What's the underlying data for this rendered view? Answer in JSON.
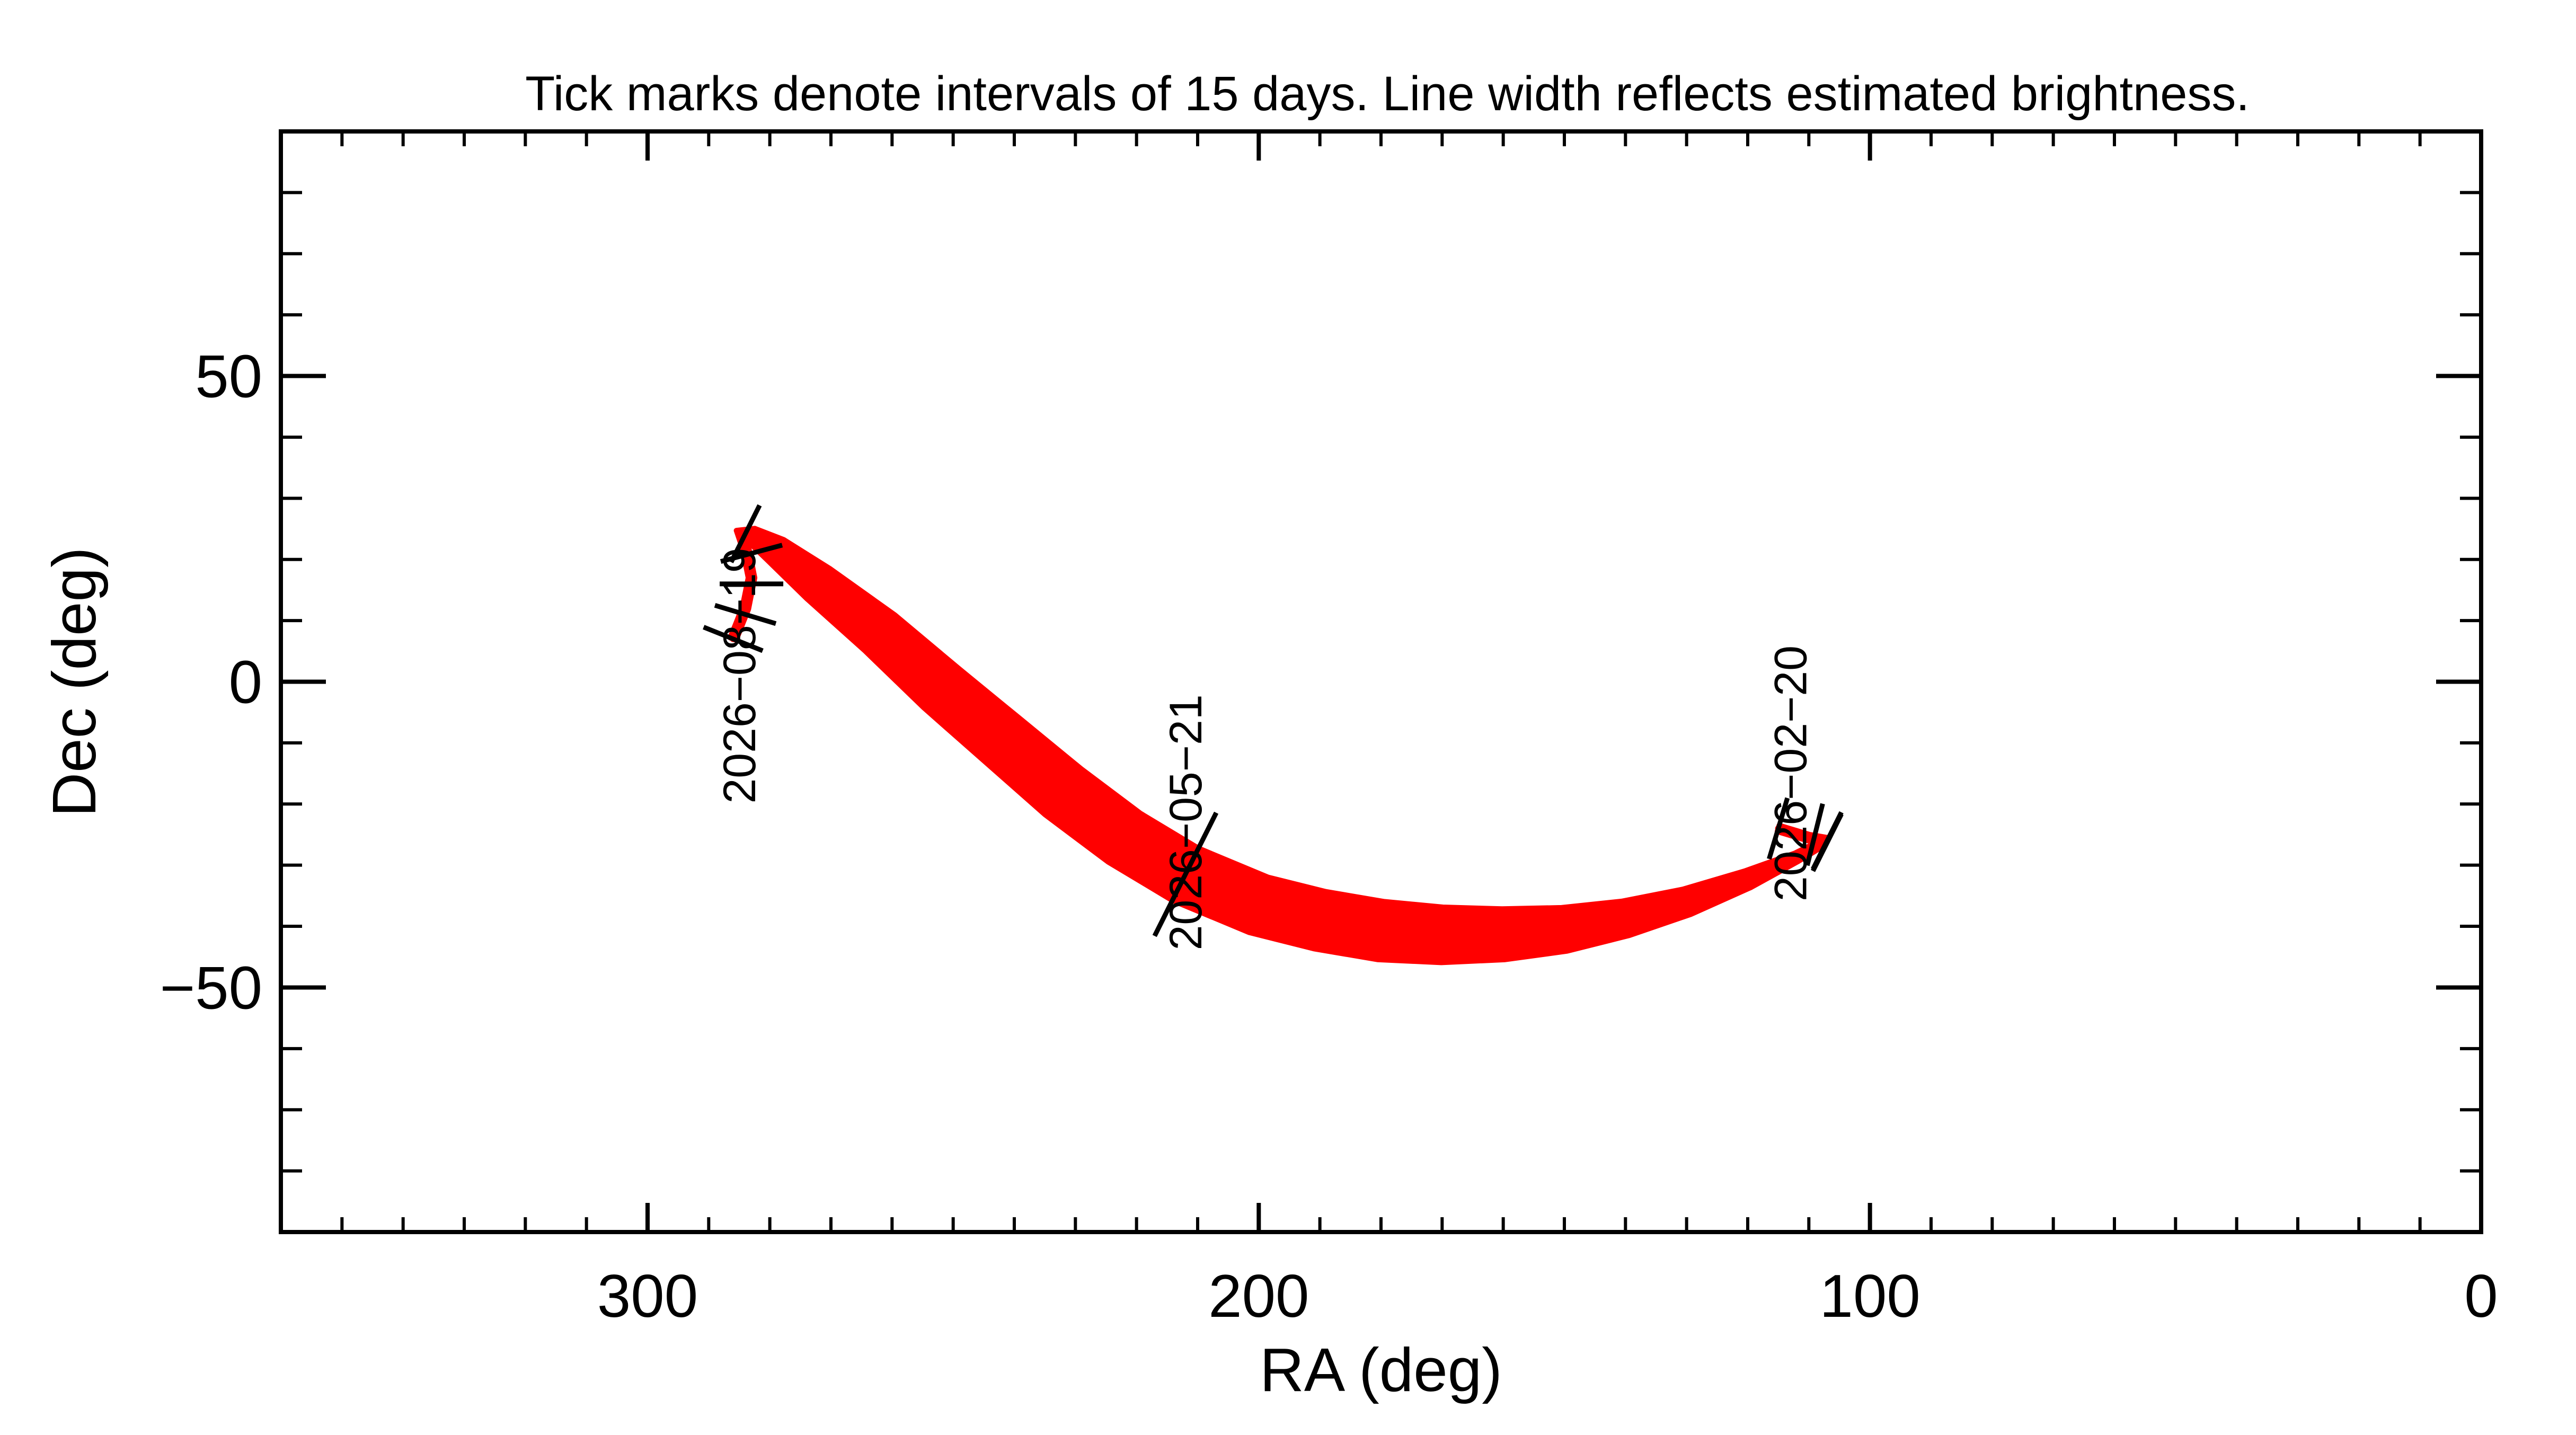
{
  "chart_data": {
    "type": "line",
    "title": "Tick marks denote intervals of 15 days.  Line width reflects estimated brightness.",
    "xlabel": "RA (deg)",
    "ylabel": "Dec (deg)",
    "xlim": [
      360,
      0
    ],
    "ylim": [
      -90,
      90
    ],
    "x_ticks": [
      300,
      200,
      100,
      0
    ],
    "x_tick_labels": [
      "300",
      "200",
      "100",
      "0"
    ],
    "y_ticks": [
      50,
      0,
      -50
    ],
    "y_tick_labels": [
      "50",
      "0",
      "−50"
    ],
    "grid": false,
    "legend": "none",
    "colors": {
      "track": "#ff0000",
      "ticks": "#000000",
      "axes": "#000000"
    },
    "series": [
      {
        "points": [
          {
            "ra": 115,
            "dec": -24.0,
            "w": 0.06
          },
          {
            "ra": 110,
            "dec": -25.5,
            "w": 0.06
          },
          {
            "ra": 107,
            "dec": -26.0,
            "w": 0.07
          },
          {
            "ra": 108,
            "dec": -26.5,
            "w": 0.08
          },
          {
            "ra": 112,
            "dec": -28.7,
            "w": 0.15
          },
          {
            "ra": 120,
            "dec": -32.3,
            "w": 0.3
          },
          {
            "ra": 130,
            "dec": -36.0,
            "w": 0.45
          },
          {
            "ra": 140,
            "dec": -38.7,
            "w": 0.6
          },
          {
            "ra": 150,
            "dec": -40.5,
            "w": 0.75
          },
          {
            "ra": 160,
            "dec": -41.3,
            "w": 0.87
          },
          {
            "ra": 170,
            "dec": -41.4,
            "w": 0.95
          },
          {
            "ra": 180,
            "dec": -40.7,
            "w": 1.0
          },
          {
            "ra": 190,
            "dec": -39.0,
            "w": 1.0
          },
          {
            "ra": 200,
            "dec": -36.5,
            "w": 1.0
          },
          {
            "ra": 212,
            "dec": -31.5,
            "w": 1.0
          },
          {
            "ra": 222,
            "dec": -25.5,
            "w": 1.0
          },
          {
            "ra": 232,
            "dec": -18.0,
            "w": 1.0
          },
          {
            "ra": 242,
            "dec": -9.5,
            "w": 0.95
          },
          {
            "ra": 252,
            "dec": -1.0,
            "w": 0.9
          },
          {
            "ra": 262,
            "dec": 8.0,
            "w": 0.8
          },
          {
            "ra": 272,
            "dec": 16.0,
            "w": 0.65
          },
          {
            "ra": 279,
            "dec": 21.5,
            "w": 0.45
          },
          {
            "ra": 283,
            "dec": 24.0,
            "w": 0.25
          },
          {
            "ra": 285,
            "dec": 24.5,
            "w": 0.1
          },
          {
            "ra": 284,
            "dec": 22.0,
            "w": 0.07
          },
          {
            "ra": 283,
            "dec": 17.0,
            "w": 0.06
          },
          {
            "ra": 284,
            "dec": 12.0,
            "w": 0.06
          },
          {
            "ra": 286,
            "dec": 7.0,
            "w": 0.06
          }
        ]
      }
    ],
    "interval_ticks": [
      {
        "ra": 115,
        "dec": -24.0
      },
      {
        "ra": 109,
        "dec": -25.0
      },
      {
        "ra": 107,
        "dec": -26.0
      },
      {
        "ra": 107,
        "dec": -26.3
      },
      {
        "ra": 212,
        "dec": -31.5
      },
      {
        "ra": 284,
        "dec": 24.2
      },
      {
        "ra": 283,
        "dec": 21.0
      },
      {
        "ra": 283,
        "dec": 16.0
      },
      {
        "ra": 284,
        "dec": 11.0
      },
      {
        "ra": 286,
        "dec": 7.0
      }
    ],
    "annotations": [
      {
        "text": "2026−02−20",
        "ra": 113,
        "dec": -15
      },
      {
        "text": "2026−05−21",
        "ra": 212,
        "dec": -23
      },
      {
        "text": "2026−08−19",
        "ra": 285,
        "dec": 1
      }
    ]
  }
}
